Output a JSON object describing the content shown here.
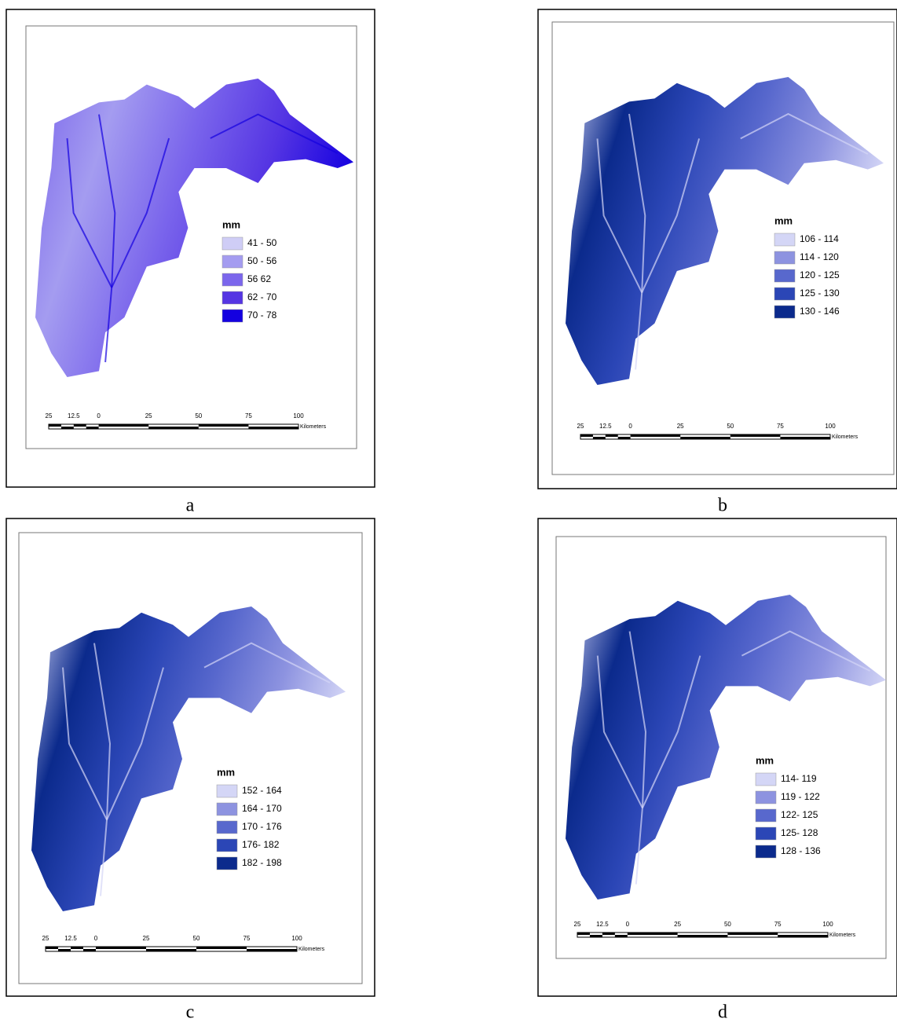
{
  "panels": [
    {
      "label": "a",
      "legend_title": "mm",
      "legend": [
        {
          "label": "41 - 50",
          "color": "#cfcdf6"
        },
        {
          "label": "50 - 56",
          "color": "#a49cf0"
        },
        {
          "label": "56 62",
          "color": "#7b66ec"
        },
        {
          "label": "62 - 70",
          "color": "#5535e3"
        },
        {
          "label": "70 - 78",
          "color": "#1400e0"
        }
      ],
      "scale": [
        "25",
        "12.5",
        "0",
        "25",
        "50",
        "75",
        "100"
      ],
      "scale_unit": "Kilometers"
    },
    {
      "label": "b",
      "legend_title": "mm",
      "legend": [
        {
          "label": "106 - 114",
          "color": "#d4d6f6"
        },
        {
          "label": "114 - 120",
          "color": "#8d93e0"
        },
        {
          "label": "120 - 125",
          "color": "#5868cd"
        },
        {
          "label": "125 - 130",
          "color": "#2b46b6"
        },
        {
          "label": "130 - 146",
          "color": "#0b2a8c"
        }
      ],
      "scale": [
        "25",
        "12.5",
        "0",
        "25",
        "50",
        "75",
        "100"
      ],
      "scale_unit": "Kilometers"
    },
    {
      "label": "c",
      "legend_title": "mm",
      "legend": [
        {
          "label": "152 - 164",
          "color": "#d4d6f6"
        },
        {
          "label": "164 - 170",
          "color": "#8d93e0"
        },
        {
          "label": "170 - 176",
          "color": "#5868cd"
        },
        {
          "label": "176- 182",
          "color": "#2b46b6"
        },
        {
          "label": "182 - 198",
          "color": "#0b2a8c"
        }
      ],
      "scale": [
        "25",
        "12.5",
        "0",
        "25",
        "50",
        "75",
        "100"
      ],
      "scale_unit": "Kilometers"
    },
    {
      "label": "d",
      "legend_title": "mm",
      "legend": [
        {
          "label": "114- 119",
          "color": "#d4d6f6"
        },
        {
          "label": "119 - 122",
          "color": "#8d93e0"
        },
        {
          "label": "122- 125",
          "color": "#5868cd"
        },
        {
          "label": "125- 128",
          "color": "#2b46b6"
        },
        {
          "label": "128 - 136",
          "color": "#0b2a8c"
        }
      ],
      "scale": [
        "25",
        "12.5",
        "0",
        "25",
        "50",
        "75",
        "100"
      ],
      "scale_unit": "Kilometers"
    }
  ]
}
